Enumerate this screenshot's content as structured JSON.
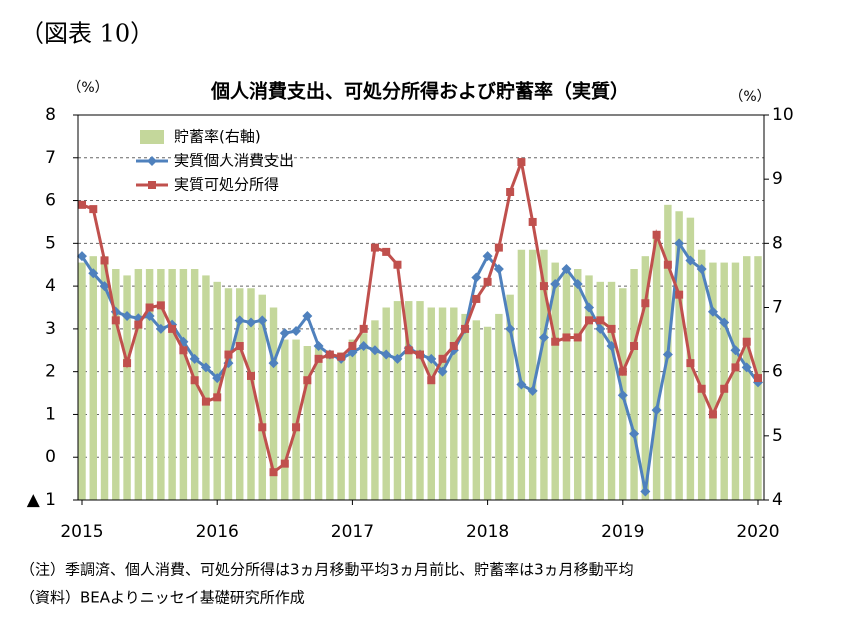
{
  "header": "（図表 10）",
  "chart_data": {
    "type": "bar-line",
    "title": "個人消費支出、可処分所得および貯蓄率（実質）",
    "y_unit": "（%）",
    "y2_unit": "（%）",
    "categories": [
      "2015",
      null,
      null,
      null,
      null,
      null,
      null,
      null,
      null,
      null,
      null,
      null,
      "2016",
      null,
      null,
      null,
      null,
      null,
      null,
      null,
      null,
      null,
      null,
      null,
      "2017",
      null,
      null,
      null,
      null,
      null,
      null,
      null,
      null,
      null,
      null,
      null,
      "2018",
      null,
      null,
      null,
      null,
      null,
      null,
      null,
      null,
      null,
      null,
      null,
      "2019",
      null,
      null,
      null,
      null,
      null,
      null,
      null,
      null,
      null,
      null,
      null,
      "2020"
    ],
    "series": [
      {
        "name": "貯蓄率(右軸)",
        "kind": "bar",
        "axis": "y2",
        "color": "#c4d79b",
        "values": [
          7.7,
          7.8,
          7.8,
          7.6,
          7.5,
          7.6,
          7.6,
          7.6,
          7.6,
          7.6,
          7.6,
          7.5,
          7.4,
          7.3,
          7.3,
          7.3,
          7.2,
          7.0,
          6.5,
          6.5,
          6.4,
          6.4,
          6.3,
          6.3,
          6.5,
          6.6,
          6.8,
          7.0,
          7.1,
          7.1,
          7.1,
          7.0,
          7.0,
          7.0,
          6.9,
          6.8,
          6.7,
          6.9,
          7.2,
          7.9,
          7.9,
          7.9,
          7.7,
          7.6,
          7.6,
          7.5,
          7.4,
          7.4,
          7.3,
          7.6,
          7.8,
          8.1,
          8.6,
          8.5,
          8.4,
          7.9,
          7.7,
          7.7,
          7.7,
          7.8,
          7.8
        ]
      },
      {
        "name": "実質個人消費支出",
        "kind": "line",
        "marker": "diamond",
        "color": "#4f81bd",
        "values": [
          4.7,
          4.3,
          4.0,
          3.4,
          3.3,
          3.25,
          3.3,
          3.0,
          3.1,
          2.7,
          2.3,
          2.1,
          1.85,
          2.2,
          3.2,
          3.15,
          3.2,
          2.2,
          2.9,
          2.95,
          3.3,
          2.6,
          2.4,
          2.3,
          2.45,
          2.6,
          2.5,
          2.4,
          2.3,
          2.55,
          2.4,
          2.3,
          2.0,
          2.5,
          3.0,
          4.2,
          4.7,
          4.4,
          3.0,
          1.7,
          1.55,
          2.8,
          4.05,
          4.4,
          4.05,
          3.5,
          3.0,
          2.6,
          1.45,
          0.55,
          -0.8,
          1.1,
          2.4,
          5.0,
          4.6,
          4.4,
          3.4,
          3.15,
          2.5,
          2.1,
          1.75
        ]
      },
      {
        "name": "実質可処分所得",
        "kind": "line",
        "marker": "square",
        "color": "#c0504d",
        "values": [
          5.9,
          5.8,
          4.6,
          3.2,
          2.2,
          3.1,
          3.5,
          3.55,
          3.0,
          2.5,
          1.8,
          1.3,
          1.4,
          2.4,
          2.6,
          1.9,
          0.7,
          -0.35,
          -0.15,
          0.7,
          1.8,
          2.3,
          2.4,
          2.35,
          2.6,
          3.0,
          4.9,
          4.8,
          4.5,
          2.5,
          2.4,
          1.8,
          2.3,
          2.6,
          3.0,
          3.7,
          4.1,
          4.9,
          6.2,
          6.9,
          5.5,
          4.0,
          2.7,
          2.8,
          2.8,
          3.2,
          3.2,
          3.0,
          2.0,
          2.6,
          3.6,
          5.2,
          4.5,
          3.8,
          2.2,
          1.6,
          1.0,
          1.6,
          2.1,
          2.7,
          1.85
        ]
      }
    ],
    "ylim": [
      -1,
      8
    ],
    "yticks": [
      {
        "value": -1,
        "label": "▲ 1"
      },
      0,
      1,
      2,
      3,
      4,
      5,
      6,
      7,
      8
    ],
    "y2lim": [
      4,
      10
    ],
    "y2ticks": [
      4,
      5,
      6,
      7,
      8,
      9,
      10
    ],
    "grid": true,
    "legend": "upper-left"
  },
  "notes": [
    "（注）季調済、個人消費、可処分所得は3ヵ月移動平均3ヵ月前比、貯蓄率は3ヵ月移動平均",
    "（資料）BEAよりニッセイ基礎研究所作成"
  ]
}
